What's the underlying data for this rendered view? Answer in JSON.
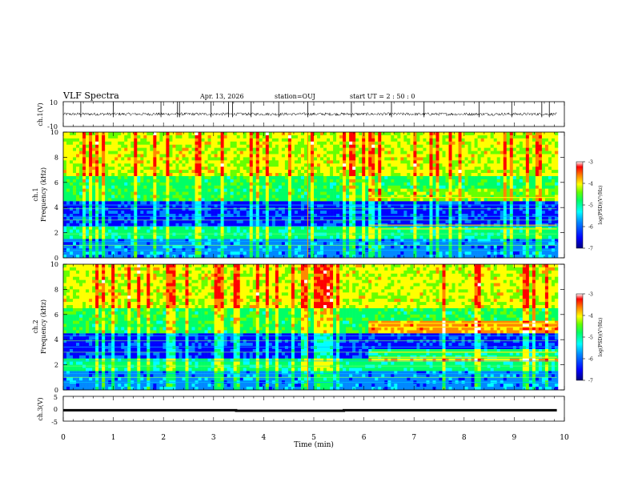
{
  "header": {
    "title": "VLF Spectra",
    "date": "Apr. 13, 2026",
    "station": "station=OUJ",
    "start": "start  UT =  2 : 50 : 0"
  },
  "chart_data": [
    {
      "id": "ch1-waveform",
      "type": "line",
      "ylabel": "ch.1(V)",
      "ylim": [
        -10,
        10
      ],
      "y_ticks": [
        "10",
        "-10"
      ],
      "baseline": 0,
      "noise_amplitude": 1.2,
      "spike_times_min": [
        0.35,
        1.0,
        1.95,
        2.28,
        2.32,
        2.95,
        3.3,
        3.38,
        3.75,
        4.3,
        4.88,
        5.75,
        6.55,
        7.2,
        8.3,
        8.95,
        9.55,
        9.7
      ]
    },
    {
      "id": "ch1-spectrogram",
      "type": "heatmap",
      "ylabel": "ch.1",
      "ylabel2": "Frequency (kHz)",
      "ylim": [
        0,
        10
      ],
      "y_ticks": [
        "0",
        "2",
        "4",
        "6",
        "8",
        "10"
      ],
      "colorbar_label": "log(PSD)(V²/Hz)",
      "colorbar_range": [
        -7,
        -3
      ],
      "colorbar_ticks": [
        "-3",
        "-4",
        "-5",
        "-6",
        "-7"
      ],
      "colormap": [
        "#000080",
        "#0000ff",
        "#0088ff",
        "#00ffff",
        "#00ff66",
        "#66ff00",
        "#ffff00",
        "#ff8800",
        "#ff0000",
        "#ffffff"
      ],
      "transition_min": 6.1,
      "lines_khz": [
        0.6,
        1.0,
        1.3,
        1.9,
        2.5,
        3.0,
        3.3,
        3.9,
        4.2
      ],
      "after_lines_khz": [
        2.3,
        2.6,
        4.8
      ]
    },
    {
      "id": "ch2-spectrogram",
      "type": "heatmap",
      "ylabel": "ch.2",
      "ylabel2": "Frequency (kHz)",
      "ylim": [
        0,
        10
      ],
      "y_ticks": [
        "0",
        "2",
        "4",
        "6",
        "8",
        "10"
      ],
      "colorbar_label": "log(PSD)(V²/Hz)",
      "colorbar_range": [
        -7,
        -3
      ],
      "colorbar_ticks": [
        "-3",
        "-4",
        "-5",
        "-6",
        "-7"
      ],
      "colormap": [
        "#000080",
        "#0000ff",
        "#0088ff",
        "#00ffff",
        "#00ff66",
        "#66ff00",
        "#ffff00",
        "#ff8800",
        "#ff0000",
        "#ffffff"
      ],
      "transition_min": 6.1,
      "lines_khz": [
        0.6,
        1.0,
        1.3,
        1.9,
        2.3,
        3.0,
        3.4,
        3.9,
        4.3
      ],
      "after_lines_khz": [
        2.6,
        3.0,
        5.0,
        5.3
      ]
    },
    {
      "id": "ch3-waveform",
      "type": "line",
      "ylabel": "ch.3(V)",
      "ylim": [
        -5,
        5
      ],
      "y_ticks": [
        "5",
        "0",
        "-5"
      ],
      "segments": [
        {
          "t0": 0.0,
          "t1": 3.45,
          "level": -0.6
        },
        {
          "t0": 3.45,
          "t1": 5.6,
          "level": -0.8
        },
        {
          "t0": 5.6,
          "t1": 9.85,
          "level": -0.6
        }
      ]
    }
  ],
  "xaxis": {
    "label": "Time (min)",
    "xlim": [
      0,
      10
    ],
    "ticks": [
      "0",
      "1",
      "2",
      "3",
      "4",
      "5",
      "6",
      "7",
      "8",
      "9",
      "10"
    ],
    "data_end_min": 9.85
  }
}
